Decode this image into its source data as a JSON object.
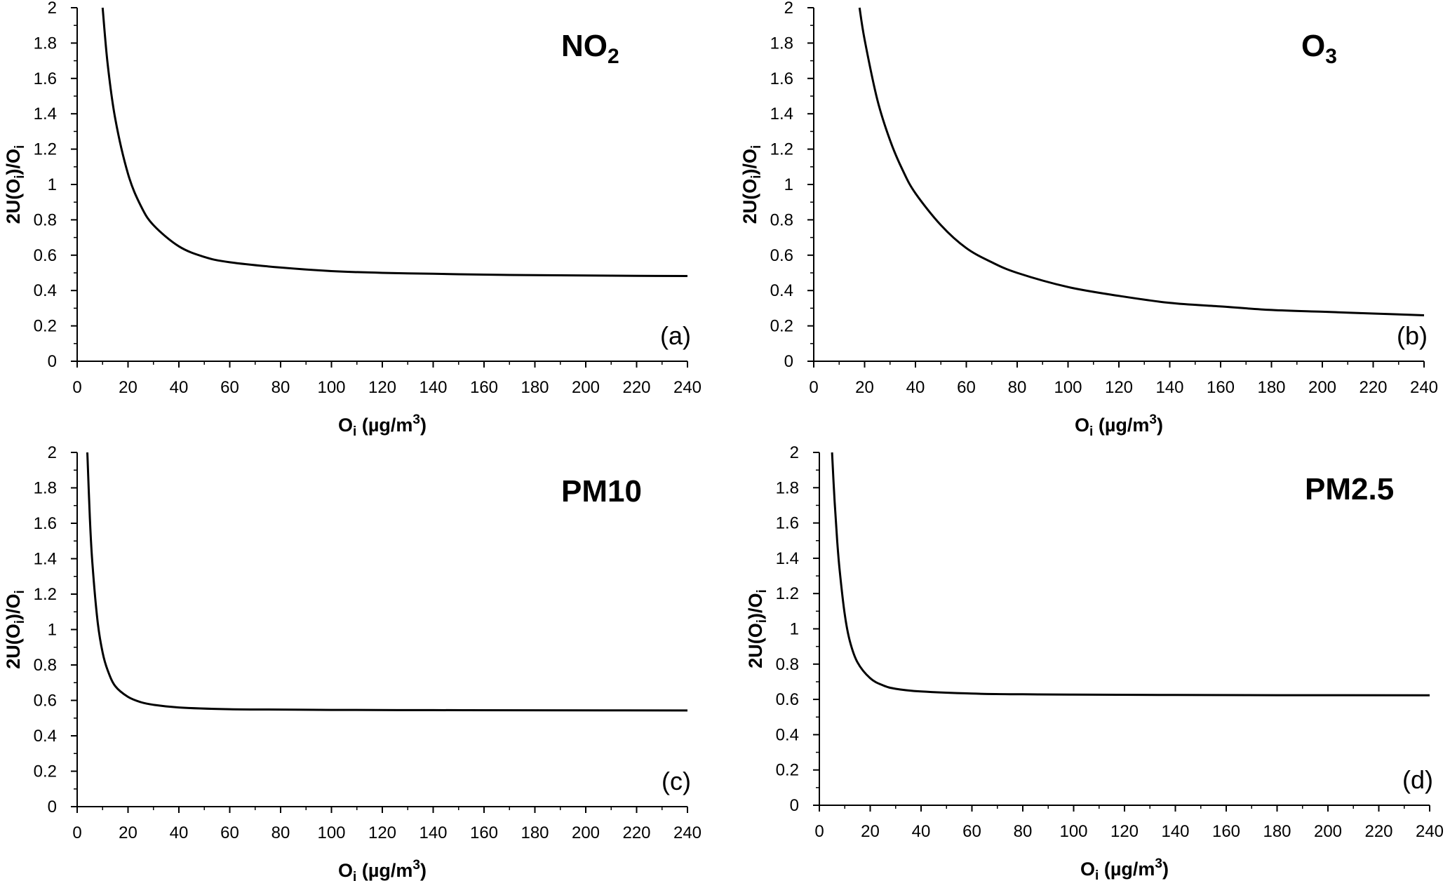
{
  "figure": {
    "panels_note_colors": {
      "line": "#000000",
      "axis": "#000000",
      "background": "#ffffff"
    }
  },
  "chart_data": [
    {
      "type": "line",
      "panel_label": "(a)",
      "title": "NO",
      "title_sub": "2",
      "xlabel": "O",
      "xlabel_sub": "i",
      "xlabel_rest": " (µg/m",
      "xlabel_sup": "3",
      "xlabel_end": ")",
      "ylabel": "2U(O",
      "ylabel_sub1": "i",
      "ylabel_mid": ")/O",
      "ylabel_sub2": "i",
      "xlim": [
        0,
        240
      ],
      "ylim": [
        0,
        2
      ],
      "x_ticks": [
        "0",
        "20",
        "40",
        "60",
        "80",
        "100",
        "120",
        "140",
        "160",
        "180",
        "200",
        "220",
        "240"
      ],
      "y_ticks": [
        "0",
        "0.2",
        "0.4",
        "0.6",
        "0.8",
        "1",
        "1.2",
        "1.4",
        "1.6",
        "1.8",
        "2"
      ],
      "grid": false,
      "series": [
        {
          "x": [
            10,
            12,
            15,
            20,
            25,
            30,
            40,
            50,
            60,
            80,
            100,
            120,
            140,
            160,
            180,
            200,
            220,
            240
          ],
          "y": [
            2.0,
            1.68,
            1.37,
            1.06,
            0.88,
            0.77,
            0.65,
            0.59,
            0.56,
            0.53,
            0.51,
            0.5,
            0.495,
            0.49,
            0.487,
            0.485,
            0.483,
            0.482
          ]
        }
      ]
    },
    {
      "type": "line",
      "panel_label": "(b)",
      "title": "O",
      "title_sub": "3",
      "xlabel": "O",
      "xlabel_sub": "i",
      "xlabel_rest": " (µg/m",
      "xlabel_sup": "3",
      "xlabel_end": ")",
      "ylabel": "2U(O",
      "ylabel_sub1": "i",
      "ylabel_mid": ")/O",
      "ylabel_sub2": "i",
      "xlim": [
        0,
        240
      ],
      "ylim": [
        0,
        2
      ],
      "x_ticks": [
        "0",
        "20",
        "40",
        "60",
        "80",
        "100",
        "120",
        "140",
        "160",
        "180",
        "200",
        "220",
        "240"
      ],
      "y_ticks": [
        "0",
        "0.2",
        "0.4",
        "0.6",
        "0.8",
        "1",
        "1.2",
        "1.4",
        "1.6",
        "1.8",
        "2"
      ],
      "grid": false,
      "series": [
        {
          "x": [
            18,
            20,
            25,
            30,
            35,
            40,
            50,
            60,
            70,
            80,
            100,
            120,
            140,
            160,
            180,
            200,
            220,
            240
          ],
          "y": [
            2.0,
            1.82,
            1.48,
            1.25,
            1.08,
            0.95,
            0.77,
            0.64,
            0.56,
            0.5,
            0.42,
            0.37,
            0.33,
            0.31,
            0.29,
            0.28,
            0.27,
            0.26
          ]
        }
      ]
    },
    {
      "type": "line",
      "panel_label": "(c)",
      "title": "PM10",
      "title_sub": "",
      "xlabel": "O",
      "xlabel_sub": "i",
      "xlabel_rest": " (µg/m",
      "xlabel_sup": "3",
      "xlabel_end": ")",
      "ylabel": "2U(O",
      "ylabel_sub1": "i",
      "ylabel_mid": ")/O",
      "ylabel_sub2": "i",
      "xlim": [
        0,
        240
      ],
      "ylim": [
        0,
        2
      ],
      "x_ticks": [
        "0",
        "20",
        "40",
        "60",
        "80",
        "100",
        "120",
        "140",
        "160",
        "180",
        "200",
        "220",
        "240"
      ],
      "y_ticks": [
        "0",
        "0.2",
        "0.4",
        "0.6",
        "0.8",
        "1",
        "1.2",
        "1.4",
        "1.6",
        "1.8",
        "2"
      ],
      "grid": false,
      "series": [
        {
          "x": [
            4,
            5,
            6,
            8,
            10,
            12,
            15,
            20,
            25,
            30,
            40,
            60,
            80,
            100,
            140,
            180,
            240
          ],
          "y": [
            2.0,
            1.63,
            1.37,
            1.05,
            0.87,
            0.77,
            0.68,
            0.62,
            0.59,
            0.575,
            0.56,
            0.55,
            0.548,
            0.546,
            0.545,
            0.544,
            0.543
          ]
        }
      ]
    },
    {
      "type": "line",
      "panel_label": "(d)",
      "title": "PM2.5",
      "title_sub": "",
      "xlabel": "O",
      "xlabel_sub": "i",
      "xlabel_rest": " (µg/m",
      "xlabel_sup": "3",
      "xlabel_end": ")",
      "ylabel": "2U(O",
      "ylabel_sub1": "i",
      "ylabel_mid": ")/O",
      "ylabel_sub2": "i",
      "xlim": [
        0,
        240
      ],
      "ylim": [
        0,
        2
      ],
      "x_ticks": [
        "0",
        "20",
        "40",
        "60",
        "80",
        "100",
        "120",
        "140",
        "160",
        "180",
        "200",
        "220",
        "240"
      ],
      "y_ticks": [
        "0",
        "0.2",
        "0.4",
        "0.6",
        "0.8",
        "1",
        "1.2",
        "1.4",
        "1.6",
        "1.8",
        "2"
      ],
      "grid": false,
      "series": [
        {
          "x": [
            5,
            6,
            7,
            8,
            10,
            12,
            15,
            20,
            25,
            30,
            40,
            60,
            80,
            100,
            140,
            180,
            240
          ],
          "y": [
            2.0,
            1.72,
            1.5,
            1.33,
            1.08,
            0.93,
            0.81,
            0.72,
            0.68,
            0.66,
            0.645,
            0.633,
            0.629,
            0.627,
            0.625,
            0.624,
            0.623
          ]
        }
      ]
    }
  ]
}
